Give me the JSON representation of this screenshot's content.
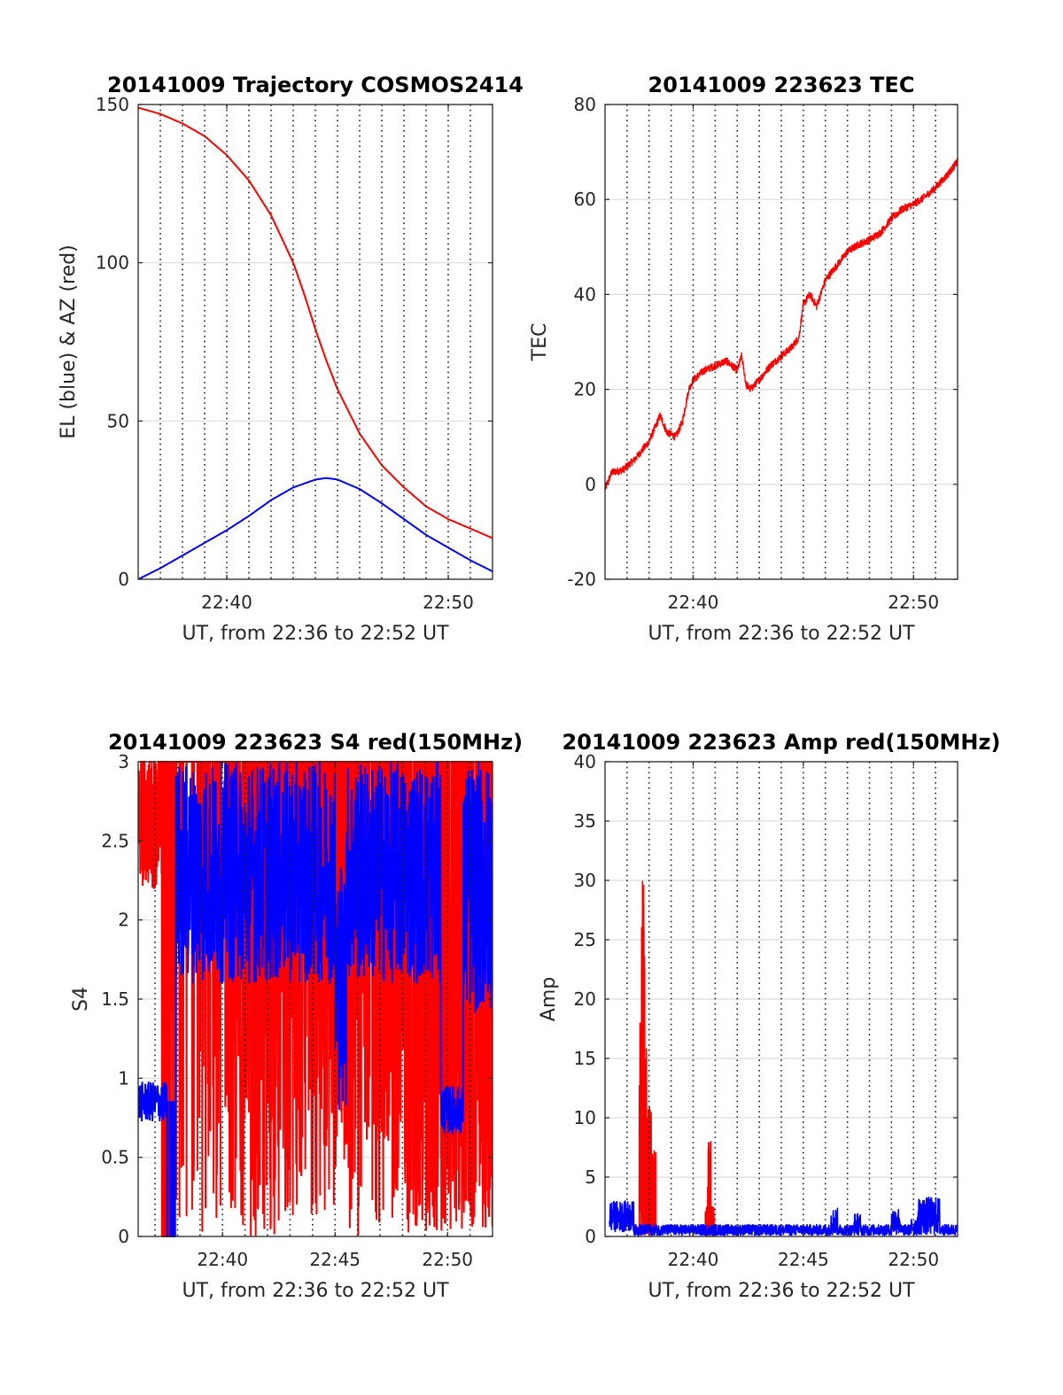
{
  "figure": {
    "width": 1200,
    "height": 1575
  },
  "chart_data": [
    {
      "id": "trajectory",
      "type": "line",
      "title": "20141009 Trajectory COSMOS2414",
      "xlabel": "UT, from 22:36 to 22:52 UT",
      "ylabel": "EL (blue) & AZ (red)",
      "xlim_minutes": [
        0,
        16
      ],
      "ylim": [
        0,
        150
      ],
      "xticks": [
        {
          "pos": 4,
          "label": "22:40"
        },
        {
          "pos": 14,
          "label": "22:50"
        }
      ],
      "yticks": [
        {
          "v": 0,
          "label": "0"
        },
        {
          "v": 50,
          "label": "50"
        },
        {
          "v": 100,
          "label": "100"
        },
        {
          "v": 150,
          "label": "150"
        }
      ],
      "vgrid": [
        1,
        2,
        3,
        4,
        5,
        6,
        7,
        8,
        9,
        10,
        11,
        12,
        13,
        14,
        15
      ],
      "hgrid": [
        50,
        100
      ],
      "series": [
        {
          "color": "#ff0000",
          "x": [
            0,
            1,
            2,
            3,
            4,
            5,
            6,
            7,
            7.5,
            8,
            8.5,
            9,
            10,
            11,
            12,
            13,
            14,
            15,
            16
          ],
          "y": [
            149,
            147,
            144,
            140,
            134,
            126,
            115,
            100,
            90,
            79,
            69,
            60,
            46,
            36,
            29,
            23,
            19,
            16,
            13
          ]
        },
        {
          "color": "#0000ff",
          "x": [
            0,
            1,
            2,
            3,
            4,
            5,
            6,
            7,
            8,
            8.5,
            9,
            10,
            11,
            12,
            13,
            14,
            15,
            16
          ],
          "y": [
            0,
            3.5,
            7.5,
            11.5,
            15.5,
            20,
            25,
            29,
            31.5,
            32,
            31.5,
            28.5,
            24,
            19,
            14,
            10,
            6,
            2.5
          ]
        }
      ]
    },
    {
      "id": "tec",
      "type": "line",
      "title": "20141009 223623 TEC",
      "xlabel": "UT, from 22:36 to 22:52 UT",
      "ylabel": "TEC",
      "xlim_minutes": [
        0,
        16
      ],
      "ylim": [
        -20,
        80
      ],
      "xticks": [
        {
          "pos": 4,
          "label": "22:40"
        },
        {
          "pos": 14,
          "label": "22:50"
        }
      ],
      "yticks": [
        {
          "v": -20,
          "label": "-20"
        },
        {
          "v": 0,
          "label": "0"
        },
        {
          "v": 20,
          "label": "20"
        },
        {
          "v": 40,
          "label": "40"
        },
        {
          "v": 60,
          "label": "60"
        },
        {
          "v": 80,
          "label": "80"
        }
      ],
      "vgrid": [
        1,
        2,
        3,
        4,
        5,
        6,
        7,
        8,
        9,
        10,
        11,
        12,
        13,
        14,
        15
      ],
      "hgrid": [
        -20,
        0,
        20,
        40,
        60,
        80
      ],
      "series": [
        {
          "color": "#ff0000",
          "noise": 0.8,
          "x": [
            0,
            0.3,
            0.8,
            1.3,
            2.0,
            2.5,
            2.8,
            3.2,
            3.5,
            3.8,
            4.0,
            4.5,
            5.0,
            5.5,
            6.0,
            6.2,
            6.4,
            6.6,
            7.0,
            7.5,
            8.0,
            8.5,
            8.8,
            9.0,
            9.3,
            9.6,
            10.0,
            10.5,
            11.0,
            11.5,
            12.0,
            12.5,
            13.0,
            13.5,
            14.0,
            14.5,
            15.0,
            15.5,
            16.0
          ],
          "y": [
            -1,
            2.5,
            3,
            5,
            9,
            14.5,
            11,
            10,
            13,
            20,
            22,
            24,
            25,
            26,
            24,
            27,
            21,
            20,
            22,
            25,
            27,
            29,
            31,
            38,
            40,
            37.5,
            43,
            46,
            49,
            50.5,
            51.5,
            53,
            56,
            58,
            59,
            60.5,
            62.5,
            65,
            68
          ]
        }
      ]
    },
    {
      "id": "s4",
      "type": "line",
      "title": "20141009 223623 S4 red(150MHz)",
      "xlabel": "UT, from 22:36 to 22:52 UT",
      "ylabel": "S4",
      "xlim_minutes": [
        0.25,
        16
      ],
      "ylim": [
        0,
        3
      ],
      "xticks": [
        {
          "pos": 4,
          "label": "22:40"
        },
        {
          "pos": 9,
          "label": "22:45"
        },
        {
          "pos": 14,
          "label": "22:50"
        }
      ],
      "yticks": [
        {
          "v": 0,
          "label": "0"
        },
        {
          "v": 0.5,
          "label": "0.5"
        },
        {
          "v": 1,
          "label": "1"
        },
        {
          "v": 1.5,
          "label": "1.5"
        },
        {
          "v": 2,
          "label": "2"
        },
        {
          "v": 2.5,
          "label": "2.5"
        },
        {
          "v": 3,
          "label": "3"
        }
      ],
      "vgrid": [
        1,
        2,
        3,
        4,
        5,
        6,
        7,
        8,
        9,
        10,
        11,
        12,
        13,
        14,
        15
      ],
      "hgrid": [
        0.5,
        1,
        1.5,
        2,
        2.5
      ],
      "series": [
        {
          "color": "#ff0000",
          "style": "s4red"
        },
        {
          "color": "#0000ff",
          "style": "s4blue"
        }
      ]
    },
    {
      "id": "amp",
      "type": "line",
      "title": "20141009 223623 Amp red(150MHz)",
      "xlabel": "UT, from 22:36 to 22:52 UT",
      "ylabel": "Amp",
      "xlim_minutes": [
        0,
        16
      ],
      "ylim": [
        0,
        40
      ],
      "xticks": [
        {
          "pos": 4,
          "label": "22:40"
        },
        {
          "pos": 9,
          "label": "22:45"
        },
        {
          "pos": 14,
          "label": "22:50"
        }
      ],
      "yticks": [
        {
          "v": 0,
          "label": "0"
        },
        {
          "v": 5,
          "label": "5"
        },
        {
          "v": 10,
          "label": "10"
        },
        {
          "v": 15,
          "label": "15"
        },
        {
          "v": 20,
          "label": "20"
        },
        {
          "v": 25,
          "label": "25"
        },
        {
          "v": 30,
          "label": "30"
        },
        {
          "v": 35,
          "label": "35"
        },
        {
          "v": 40,
          "label": "40"
        }
      ],
      "vgrid": [
        1,
        2,
        3,
        4,
        5,
        6,
        7,
        8,
        9,
        10,
        11,
        12,
        13,
        14,
        15
      ],
      "hgrid": [
        5,
        10,
        15,
        20,
        25,
        30,
        35
      ],
      "series": [
        {
          "color": "#ff0000",
          "style": "ampred"
        },
        {
          "color": "#0000ff",
          "style": "ampblue"
        }
      ]
    }
  ]
}
